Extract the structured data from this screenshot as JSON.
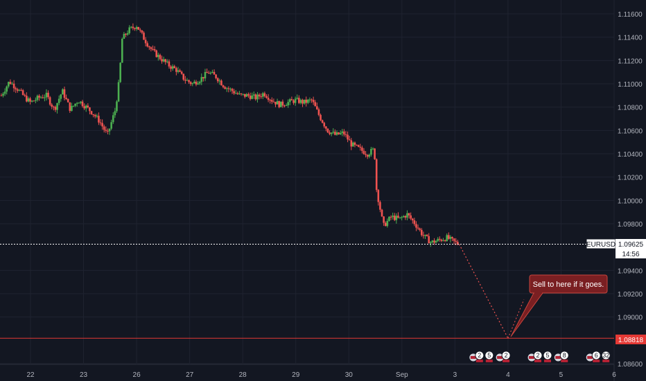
{
  "chart_data": {
    "type": "candlestick",
    "symbol": "EURUSD",
    "last_price": "1.09625",
    "countdown": "14:56",
    "target_level": "1.08818",
    "annotation": "Sell to here if it goes.",
    "y_ticks": [
      "1.11600",
      "1.11400",
      "1.11200",
      "1.11000",
      "1.10800",
      "1.10600",
      "1.10400",
      "1.10200",
      "1.10000",
      "1.09800",
      "1.09400",
      "1.09200",
      "1.09000",
      "1.08600"
    ],
    "y_tick_values": [
      1.116,
      1.114,
      1.112,
      1.11,
      1.108,
      1.106,
      1.104,
      1.102,
      1.1,
      1.098,
      1.094,
      1.092,
      1.09,
      1.086
    ],
    "ylim": [
      1.0855,
      1.1176
    ],
    "x_ticks": [
      "22",
      "23",
      "26",
      "27",
      "28",
      "29",
      "30",
      "Sep",
      "3",
      "4",
      "5",
      "6"
    ],
    "x_tick_index": [
      0,
      1,
      2,
      3,
      4,
      5,
      6,
      7,
      8,
      9,
      10,
      11
    ],
    "xlim": [
      -0.55,
      11.0
    ],
    "price_path": [
      [
        -0.55,
        1.109
      ],
      [
        -0.4,
        1.1102
      ],
      [
        -0.25,
        1.1096
      ],
      [
        -0.1,
        1.1088
      ],
      [
        0.0,
        1.1084
      ],
      [
        0.15,
        1.1088
      ],
      [
        0.3,
        1.109
      ],
      [
        0.45,
        1.1078
      ],
      [
        0.6,
        1.1094
      ],
      [
        0.75,
        1.1078
      ],
      [
        0.9,
        1.1086
      ],
      [
        1.0,
        1.1082
      ],
      [
        1.15,
        1.1076
      ],
      [
        1.3,
        1.1068
      ],
      [
        1.45,
        1.1056
      ],
      [
        1.6,
        1.1078
      ],
      [
        1.68,
        1.1106
      ],
      [
        1.72,
        1.1138
      ],
      [
        1.85,
        1.1146
      ],
      [
        2.0,
        1.115
      ],
      [
        2.15,
        1.1138
      ],
      [
        2.3,
        1.1128
      ],
      [
        2.45,
        1.1122
      ],
      [
        2.6,
        1.1116
      ],
      [
        2.75,
        1.1112
      ],
      [
        2.9,
        1.1104
      ],
      [
        3.05,
        1.11
      ],
      [
        3.2,
        1.1104
      ],
      [
        3.35,
        1.111
      ],
      [
        3.5,
        1.1106
      ],
      [
        3.65,
        1.1098
      ],
      [
        3.8,
        1.1094
      ],
      [
        3.95,
        1.109
      ],
      [
        4.1,
        1.109
      ],
      [
        4.25,
        1.1088
      ],
      [
        4.4,
        1.1092
      ],
      [
        4.55,
        1.1086
      ],
      [
        4.7,
        1.1082
      ],
      [
        4.85,
        1.1084
      ],
      [
        5.0,
        1.1086
      ],
      [
        5.15,
        1.1084
      ],
      [
        5.3,
        1.1086
      ],
      [
        5.45,
        1.1072
      ],
      [
        5.6,
        1.106
      ],
      [
        5.75,
        1.1056
      ],
      [
        5.9,
        1.1058
      ],
      [
        6.05,
        1.1048
      ],
      [
        6.2,
        1.1044
      ],
      [
        6.35,
        1.104
      ],
      [
        6.48,
        1.1044
      ],
      [
        6.52,
        1.101
      ],
      [
        6.65,
        1.0978
      ],
      [
        6.8,
        1.0986
      ],
      [
        6.95,
        1.0984
      ],
      [
        7.1,
        1.0988
      ],
      [
        7.25,
        1.098
      ],
      [
        7.4,
        1.097
      ],
      [
        7.55,
        1.0964
      ],
      [
        7.7,
        1.0966
      ],
      [
        7.85,
        1.0968
      ],
      [
        8.0,
        1.0964
      ],
      [
        8.08,
        1.09625
      ]
    ],
    "forecast_line": [
      [
        8.08,
        1.09625
      ],
      [
        9.0,
        1.08818
      ],
      [
        9.3,
        1.0915
      ]
    ],
    "events": [
      {
        "x": 8.45,
        "labels": [
          "2",
          "5"
        ]
      },
      {
        "x": 8.95,
        "labels": [
          "2"
        ]
      },
      {
        "x": 9.55,
        "labels": [
          "2",
          "5"
        ]
      },
      {
        "x": 10.05,
        "labels": [
          "8"
        ]
      },
      {
        "x": 10.65,
        "labels": [
          "6",
          "32"
        ]
      }
    ]
  },
  "colors": {
    "background": "#131722",
    "grid": "#1f2330",
    "text": "#b2b5be",
    "up": "#26a69a",
    "down": "#ef5350",
    "up_body": "#4caf50",
    "level": "#e53935",
    "annotation_bg": "#7a1f22",
    "annotation_border": "#c7453d"
  }
}
